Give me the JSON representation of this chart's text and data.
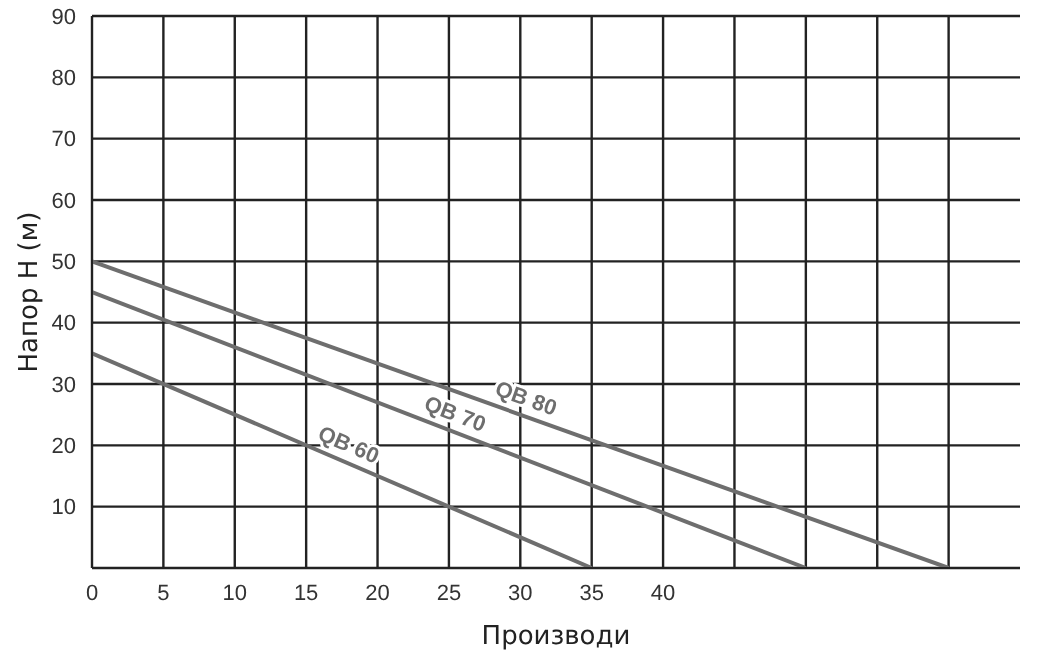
{
  "chart_data": {
    "type": "line",
    "xlabel": "Производи",
    "ylabel": "Напор  H (м)",
    "xlim": [
      0,
      65
    ],
    "xticks": [
      0,
      5,
      10,
      15,
      20,
      25,
      30,
      35,
      40,
      {
        "value": 45,
        "label": null
      },
      {
        "value": 50,
        "label": null
      },
      {
        "value": 55,
        "label": null
      },
      {
        "value": 60,
        "label": null
      }
    ],
    "ylim": [
      0,
      90
    ],
    "yticks": [
      {
        "value": 0,
        "label": null
      },
      10,
      20,
      30,
      40,
      50,
      60,
      70,
      80,
      90
    ],
    "grid": true,
    "marker": "none",
    "line_style": "solid",
    "series": [
      {
        "name": "QB 60",
        "color": "#6e6e6e",
        "x": [
          0,
          35
        ],
        "values": [
          35,
          0
        ]
      },
      {
        "name": "QB 70",
        "color": "#6e6e6e",
        "x": [
          0,
          50
        ],
        "values": [
          45,
          0
        ]
      },
      {
        "name": "QB 80",
        "color": "#6e6e6e",
        "x": [
          0,
          60
        ],
        "values": [
          50,
          0
        ]
      }
    ]
  }
}
